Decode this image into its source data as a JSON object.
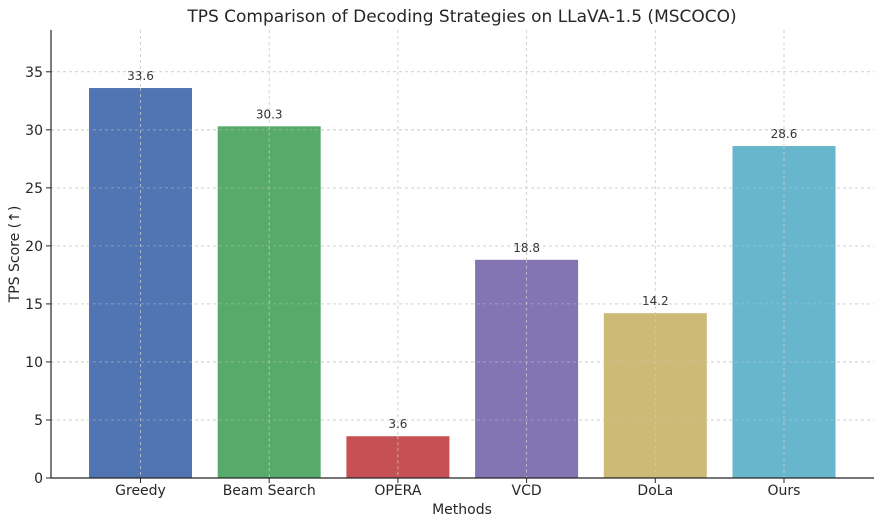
{
  "chart_data": {
    "type": "bar",
    "title": "TPS Comparison of Decoding Strategies on LLaVA-1.5 (MSCOCO)",
    "xlabel": "Methods",
    "ylabel": "TPS Score (↑)",
    "categories": [
      "Greedy",
      "Beam Search",
      "OPERA",
      "VCD",
      "DoLa",
      "Ours"
    ],
    "values": [
      33.6,
      30.3,
      3.6,
      18.8,
      14.2,
      28.6
    ],
    "value_labels": [
      "33.6",
      "30.3",
      "3.6",
      "18.8",
      "14.2",
      "28.6"
    ],
    "colors": [
      "#4c72b0",
      "#55a868",
      "#c44e52",
      "#8172b2",
      "#ccb974",
      "#64b5cd"
    ],
    "ylim": [
      0,
      38.6
    ],
    "yticks": [
      0,
      5,
      10,
      15,
      20,
      25,
      30,
      35
    ],
    "grid": true,
    "legend": "none"
  }
}
